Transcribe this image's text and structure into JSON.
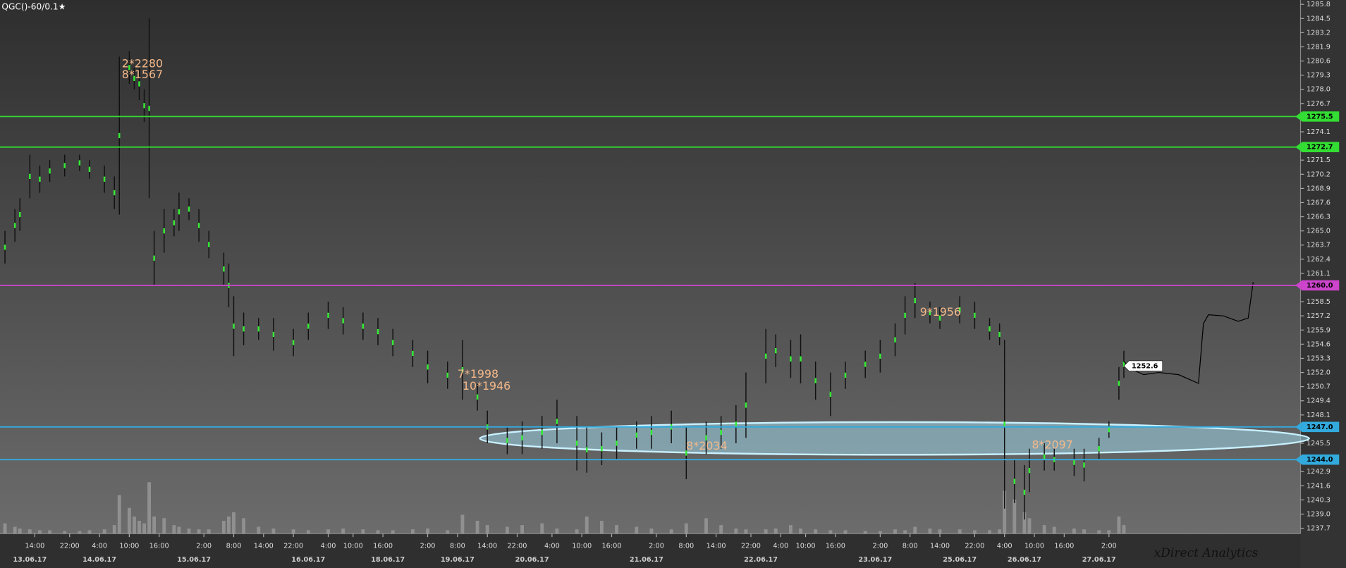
{
  "title": "QGC()-60/0.1★",
  "brand": "xDirect Analytics",
  "chart_data": {
    "type": "range-bar",
    "xlim": [
      0,
      261
    ],
    "ylim": [
      1237.2,
      1286.2
    ],
    "yticks": [
      1285.8,
      1284.5,
      1283.2,
      1281.9,
      1280.6,
      1279.3,
      {
        "value": 1278.0,
        "label": "1278.0"
      },
      1276.7,
      1274.1,
      1271.5,
      1270.2,
      1268.9,
      1267.6,
      1266.3,
      {
        "value": 1265.0,
        "label": "1265.0"
      },
      1263.7,
      1262.4,
      1261.1,
      1258.5,
      1257.2,
      1255.9,
      1254.6,
      1253.3,
      {
        "value": 1252.0,
        "label": "1252.0"
      },
      1250.7,
      1249.4,
      1248.1,
      1245.5,
      1242.9,
      1241.6,
      1240.3,
      {
        "value": 1239.0,
        "label": "1239.0"
      },
      1237.7
    ],
    "xticks": [
      {
        "value": 7,
        "label": "14:00"
      },
      {
        "value": 14,
        "label": "22:00"
      },
      {
        "value": 20,
        "label": "4:00"
      },
      {
        "value": 26,
        "label": "10:00"
      },
      {
        "value": 32,
        "label": "16:00"
      },
      {
        "value": 41,
        "label": "2:00"
      },
      {
        "value": 47,
        "label": "8:00"
      },
      {
        "value": 53,
        "label": "14:00"
      },
      {
        "value": 59,
        "label": "22:00"
      },
      {
        "value": 66,
        "label": "4:00"
      },
      {
        "value": 71,
        "label": "10:00"
      },
      {
        "value": 77,
        "label": "16:00"
      },
      {
        "value": 86,
        "label": "2:00"
      },
      {
        "value": 92,
        "label": "8:00"
      },
      {
        "value": 98,
        "label": "14:00"
      },
      {
        "value": 104,
        "label": "22:00"
      },
      {
        "value": 111,
        "label": "4:00"
      },
      {
        "value": 117,
        "label": "10:00"
      },
      {
        "value": 123,
        "label": "16:00"
      },
      {
        "value": 132,
        "label": "2:00"
      },
      {
        "value": 138,
        "label": "8:00"
      },
      {
        "value": 144,
        "label": "14:00"
      },
      {
        "value": 151,
        "label": "22:00"
      },
      {
        "value": 157,
        "label": "4:00"
      },
      {
        "value": 162,
        "label": "10:00"
      },
      {
        "value": 168,
        "label": "16:00"
      },
      {
        "value": 177,
        "label": "2:00"
      },
      {
        "value": 183,
        "label": "8:00"
      },
      {
        "value": 189,
        "label": "14:00"
      },
      {
        "value": 196,
        "label": "22:00"
      },
      {
        "value": 202,
        "label": "4:00"
      },
      {
        "value": 208,
        "label": "10:00"
      },
      {
        "value": 214,
        "label": "16:00"
      },
      {
        "value": 223,
        "label": "2:00"
      }
    ],
    "date_ticks": [
      {
        "value": 6,
        "label": "13.06.17"
      },
      {
        "value": 20,
        "label": "14.06.17"
      },
      {
        "value": 39,
        "label": "15.06.17"
      },
      {
        "value": 62,
        "label": "16.06.17"
      },
      {
        "value": 78,
        "label": "18.06.17"
      },
      {
        "value": 92,
        "label": "19.06.17"
      },
      {
        "value": 107,
        "label": "20.06.17"
      },
      {
        "value": 130,
        "label": "21.06.17"
      },
      {
        "value": 153,
        "label": "22.06.17"
      },
      {
        "value": 176,
        "label": "23.06.17"
      },
      {
        "value": 193,
        "label": "25.06.17"
      },
      {
        "value": 206,
        "label": "26.06.17"
      },
      {
        "value": 221,
        "label": "27.06.17"
      }
    ],
    "bar_color": "#111111",
    "accent_color": "#33ee33",
    "volume_color": "#9a9a9a",
    "x": [
      1,
      3,
      4,
      6,
      8,
      10,
      13,
      16,
      18,
      21,
      23,
      24,
      26,
      27,
      28,
      29,
      30,
      31,
      33,
      35,
      36,
      38,
      40,
      42,
      45,
      46,
      47,
      49,
      52,
      55,
      59,
      62,
      66,
      69,
      73,
      76,
      79,
      83,
      86,
      90,
      93,
      96,
      98,
      102,
      105,
      109,
      112,
      116,
      118,
      121,
      124,
      128,
      131,
      135,
      138,
      142,
      145,
      148,
      150,
      154,
      156,
      159,
      161,
      164,
      167,
      170,
      174,
      177,
      180,
      182,
      184,
      187,
      189,
      193,
      196,
      199,
      201,
      202,
      204,
      206,
      207,
      210,
      212,
      216,
      218,
      221,
      223,
      225,
      226
    ],
    "high": [
      1265,
      1267,
      1268,
      1272,
      1271,
      1271.5,
      1272,
      1272,
      1271.5,
      1271,
      1270,
      1281,
      1281.5,
      1280,
      1280,
      1278,
      1284.5,
      1265,
      1267,
      1267,
      1268.5,
      1268,
      1267,
      1265,
      1263,
      1262,
      1259,
      1257.5,
      1257,
      1257,
      1256,
      1257.5,
      1258.5,
      1258,
      1257.5,
      1257,
      1256,
      1255,
      1254,
      1253,
      1255,
      1251,
      1248.5,
      1247,
      1247.5,
      1248,
      1249.5,
      1248,
      1247,
      1246.5,
      1247,
      1247.5,
      1248,
      1248.5,
      1247,
      1247.5,
      1248,
      1249,
      1252,
      1256,
      1255.5,
      1255,
      1255.5,
      1253,
      1252,
      1253,
      1254,
      1255,
      1256.5,
      1259,
      1260.2,
      1258.5,
      1258,
      1259,
      1258.5,
      1257,
      1256.5,
      1255,
      1244,
      1243.5,
      1245,
      1245.5,
      1245,
      1245,
      1245,
      1246,
      1247.5,
      1252.5,
      1254
    ],
    "low": [
      1262,
      1264,
      1265,
      1268,
      1268.5,
      1269.5,
      1270,
      1270.5,
      1269.8,
      1268.5,
      1267,
      1266.5,
      1278.5,
      1278,
      1277,
      1275,
      1268,
      1260,
      1263,
      1264.5,
      1265,
      1266,
      1264,
      1262.5,
      1260,
      1258,
      1253.5,
      1254.5,
      1255,
      1254,
      1253.5,
      1255,
      1256,
      1255.5,
      1255,
      1254.5,
      1253.5,
      1252.5,
      1251,
      1250.5,
      1249.5,
      1248.5,
      1245.5,
      1244.5,
      1244.5,
      1245,
      1245.5,
      1243,
      1242.8,
      1243.5,
      1244,
      1245,
      1245,
      1245.5,
      1242.2,
      1244.5,
      1245,
      1245.5,
      1246,
      1251,
      1252.5,
      1251.5,
      1251,
      1249.5,
      1248,
      1250.5,
      1251.5,
      1252,
      1253.5,
      1255.5,
      1257,
      1256.5,
      1256,
      1256.5,
      1256,
      1255,
      1254.5,
      1239.5,
      1240,
      1238.5,
      1241,
      1243,
      1243,
      1242.5,
      1242,
      1244,
      1246,
      1249.5,
      1251.5
    ],
    "volume": [
      12,
      8,
      6,
      5,
      4,
      4,
      3,
      3,
      4,
      5,
      10,
      45,
      30,
      20,
      15,
      12,
      60,
      20,
      18,
      10,
      8,
      6,
      5,
      5,
      15,
      20,
      25,
      18,
      8,
      6,
      5,
      4,
      5,
      6,
      5,
      4,
      4,
      5,
      6,
      4,
      22,
      15,
      10,
      8,
      10,
      12,
      6,
      5,
      20,
      15,
      10,
      8,
      6,
      5,
      12,
      18,
      10,
      6,
      5,
      5,
      6,
      10,
      6,
      5,
      4,
      4,
      3,
      3,
      5,
      4,
      8,
      6,
      5,
      5,
      4,
      4,
      5,
      50,
      40,
      25,
      18,
      10,
      8,
      6,
      5,
      4,
      4,
      20,
      10
    ],
    "projection": {
      "color": "#000000",
      "x": [
        226,
        228,
        230,
        233,
        237,
        241,
        242,
        243,
        246,
        249,
        251,
        252
      ],
      "values": [
        1253,
        1252.2,
        1251.8,
        1252,
        1251.8,
        1251,
        1256.5,
        1257.3,
        1257.2,
        1256.7,
        1257,
        1260.3
      ]
    },
    "levels": [
      {
        "value": 1275.5,
        "color": "#33dd33"
      },
      {
        "value": 1272.7,
        "color": "#33dd33"
      },
      {
        "value": {
          "value": 1260.0,
          "label": "1260.0"
        },
        "color": "#cc44cc"
      },
      {
        "value": {
          "value": 1247.0,
          "label": "1247.0"
        },
        "color": "#33aadd"
      },
      {
        "value": {
          "value": 1244.0,
          "label": "1244.0"
        },
        "color": "#33aadd"
      }
    ],
    "last_price": 1252.6,
    "annotations": [
      {
        "text": "2*2280",
        "x": 24.5,
        "y": 1280.3
      },
      {
        "text": "8*1567",
        "x": 24.5,
        "y": 1279.3
      },
      {
        "text": "7*1998",
        "x": 92,
        "y": 1251.8
      },
      {
        "text": "10*1946",
        "x": 93,
        "y": 1250.7
      },
      {
        "text": "9*1956",
        "x": 185,
        "y": 1257.5
      },
      {
        "text": "8*2034",
        "x": 138,
        "y": 1245.2
      },
      {
        "text": "8*2097",
        "x": 207.5,
        "y": 1245.3
      }
    ]
  }
}
